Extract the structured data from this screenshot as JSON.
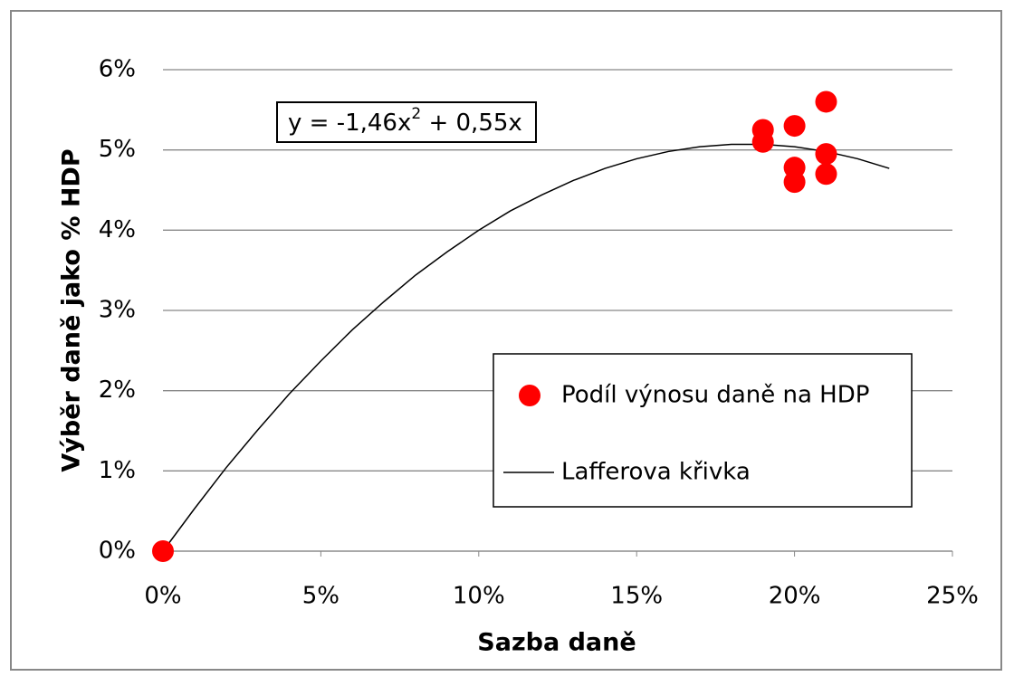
{
  "chart_data": {
    "type": "scatter",
    "x_label": "Sazba daně",
    "y_label": "Výběr daně jako % HDP",
    "annotation": {
      "parts": [
        "y = -1,46x",
        "2",
        " + 0,55x"
      ]
    },
    "xlim": [
      0,
      25
    ],
    "ylim": [
      0,
      6
    ],
    "xticks": [
      {
        "value": 0,
        "label": "0%"
      },
      {
        "value": 5,
        "label": "5%"
      },
      {
        "value": 10,
        "label": "10%"
      },
      {
        "value": 15,
        "label": "15%"
      },
      {
        "value": 20,
        "label": "20%"
      },
      {
        "value": 25,
        "label": "25%"
      }
    ],
    "yticks": [
      {
        "value": 0,
        "label": "0%"
      },
      {
        "value": 1,
        "label": "1%"
      },
      {
        "value": 2,
        "label": "2%"
      },
      {
        "value": 3,
        "label": "3%"
      },
      {
        "value": 4,
        "label": "4%"
      },
      {
        "value": 5,
        "label": "5%"
      },
      {
        "value": 6,
        "label": "6%"
      }
    ],
    "grid": true,
    "legend": "right",
    "series": [
      {
        "name": "Podíl výnosu daně na HDP",
        "type": "scatter",
        "color": "#ff0000",
        "x": [
          0,
          19,
          19,
          20,
          20,
          20,
          21,
          21,
          21
        ],
        "values": [
          0,
          5.25,
          5.1,
          5.3,
          4.78,
          4.6,
          5.6,
          4.95,
          4.7
        ]
      },
      {
        "name": "Lafferova křivka",
        "type": "line",
        "color": "#000000",
        "x": [
          0,
          1,
          2,
          3,
          4,
          5,
          6,
          7,
          8,
          9,
          10,
          11,
          12,
          13,
          14,
          15,
          16,
          17,
          18,
          19,
          20,
          21,
          22,
          23
        ],
        "values": [
          0,
          0.53,
          1.04,
          1.51,
          1.96,
          2.37,
          2.76,
          3.11,
          3.44,
          3.73,
          4.0,
          4.24,
          4.44,
          4.62,
          4.77,
          4.89,
          4.98,
          5.04,
          5.07,
          5.07,
          5.04,
          4.98,
          4.89,
          4.77
        ]
      }
    ]
  }
}
